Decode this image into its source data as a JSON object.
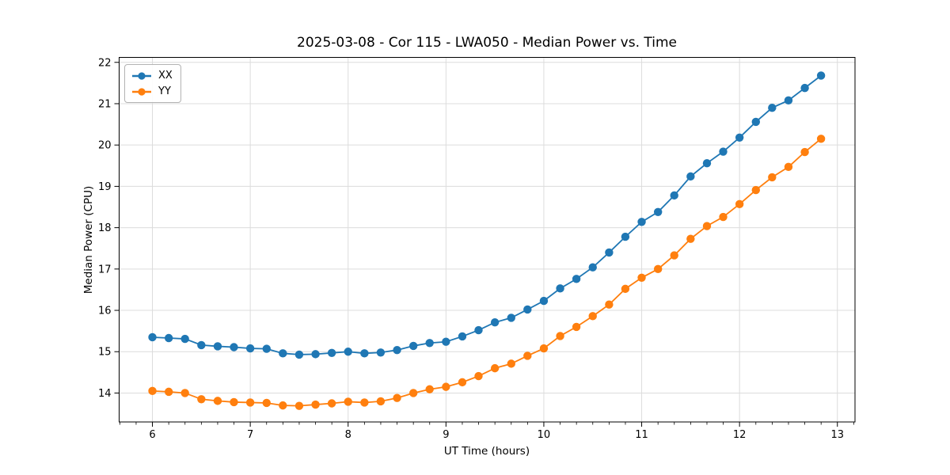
{
  "chart_data": {
    "type": "line",
    "title": "2025-03-08 - Cor 115 - LWA050 - Median Power vs. Time",
    "xlabel": "UT Time (hours)",
    "ylabel": "Median Power (CPU)",
    "xlim": [
      5.66,
      13.18
    ],
    "ylim": [
      13.3,
      22.12
    ],
    "x_ticks": [
      6,
      7,
      8,
      9,
      10,
      11,
      12,
      13
    ],
    "y_ticks": [
      14,
      15,
      16,
      17,
      18,
      19,
      20,
      21,
      22
    ],
    "x_minor_step": 0.16667,
    "grid": true,
    "grid_color": "#dcdcdc",
    "legend_position": "upper left",
    "marker": "o",
    "x": [
      6.0,
      6.167,
      6.333,
      6.5,
      6.667,
      6.833,
      7.0,
      7.167,
      7.333,
      7.5,
      7.667,
      7.833,
      8.0,
      8.167,
      8.333,
      8.5,
      8.667,
      8.833,
      9.0,
      9.167,
      9.333,
      9.5,
      9.667,
      9.833,
      10.0,
      10.167,
      10.333,
      10.5,
      10.667,
      10.833,
      11.0,
      11.167,
      11.333,
      11.5,
      11.667,
      11.833,
      12.0,
      12.167,
      12.333,
      12.5,
      12.667,
      12.833
    ],
    "series": [
      {
        "name": "XX",
        "color": "#1f77b4",
        "values": [
          15.35,
          15.33,
          15.31,
          15.16,
          15.13,
          15.11,
          15.08,
          15.07,
          14.96,
          14.93,
          14.94,
          14.97,
          15.0,
          14.96,
          14.98,
          15.04,
          15.14,
          15.21,
          15.24,
          15.37,
          15.52,
          15.71,
          15.82,
          16.02,
          16.23,
          16.53,
          16.76,
          17.04,
          17.4,
          17.78,
          18.14,
          18.38,
          18.78,
          19.24,
          19.56,
          19.84,
          20.18,
          20.56,
          20.9,
          21.08,
          21.38,
          21.68
        ]
      },
      {
        "name": "YY",
        "color": "#ff7f0e",
        "values": [
          14.05,
          14.03,
          14.0,
          13.85,
          13.81,
          13.78,
          13.77,
          13.76,
          13.7,
          13.69,
          13.72,
          13.75,
          13.79,
          13.77,
          13.8,
          13.88,
          14.0,
          14.09,
          14.15,
          14.26,
          14.41,
          14.6,
          14.71,
          14.9,
          15.08,
          15.38,
          15.6,
          15.86,
          16.14,
          16.52,
          16.79,
          17.0,
          17.33,
          17.73,
          18.04,
          18.26,
          18.57,
          18.91,
          19.22,
          19.47,
          19.83,
          20.15
        ]
      }
    ]
  }
}
